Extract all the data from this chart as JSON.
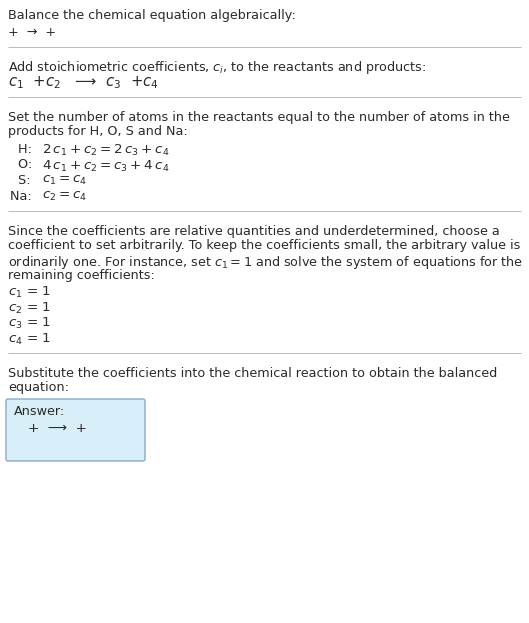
{
  "title": "Balance the chemical equation algebraically:",
  "line1": "+  →  +",
  "section1_title": "Add stoichiometric coefficients, $c_i$, to the reactants and products:",
  "section1_eq": "$c_1$  +$c_2$   ⟶  $c_3$  +$c_4$",
  "section2_title_line1": "Set the number of atoms in the reactants equal to the number of atoms in the",
  "section2_title_line2": "products for H, O, S and Na:",
  "section2_lines": [
    [
      "  H: ",
      "$2\\,c_1 + c_2 = 2\\,c_3 + c_4$"
    ],
    [
      "  O: ",
      "$4\\,c_1 + c_2 = c_3 + 4\\,c_4$"
    ],
    [
      "  S: ",
      "$c_1 = c_4$"
    ],
    [
      "Na: ",
      "$c_2 = c_4$"
    ]
  ],
  "section3_title_lines": [
    "Since the coefficients are relative quantities and underdetermined, choose a",
    "coefficient to set arbitrarily. To keep the coefficients small, the arbitrary value is",
    "ordinarily one. For instance, set $c_1 = 1$ and solve the system of equations for the",
    "remaining coefficients:"
  ],
  "section3_lines": [
    "$c_1$ = 1",
    "$c_2$ = 1",
    "$c_3$ = 1",
    "$c_4$ = 1"
  ],
  "section4_title_line1": "Substitute the coefficients into the chemical reaction to obtain the balanced",
  "section4_title_line2": "equation:",
  "answer_label": "Answer:",
  "answer_eq": "+  ⟶  +",
  "bg_color": "#ffffff",
  "text_color": "#2a2a2a",
  "line_color": "#bbbbbb",
  "answer_box_facecolor": "#d8eef8",
  "answer_box_edgecolor": "#88aacc"
}
